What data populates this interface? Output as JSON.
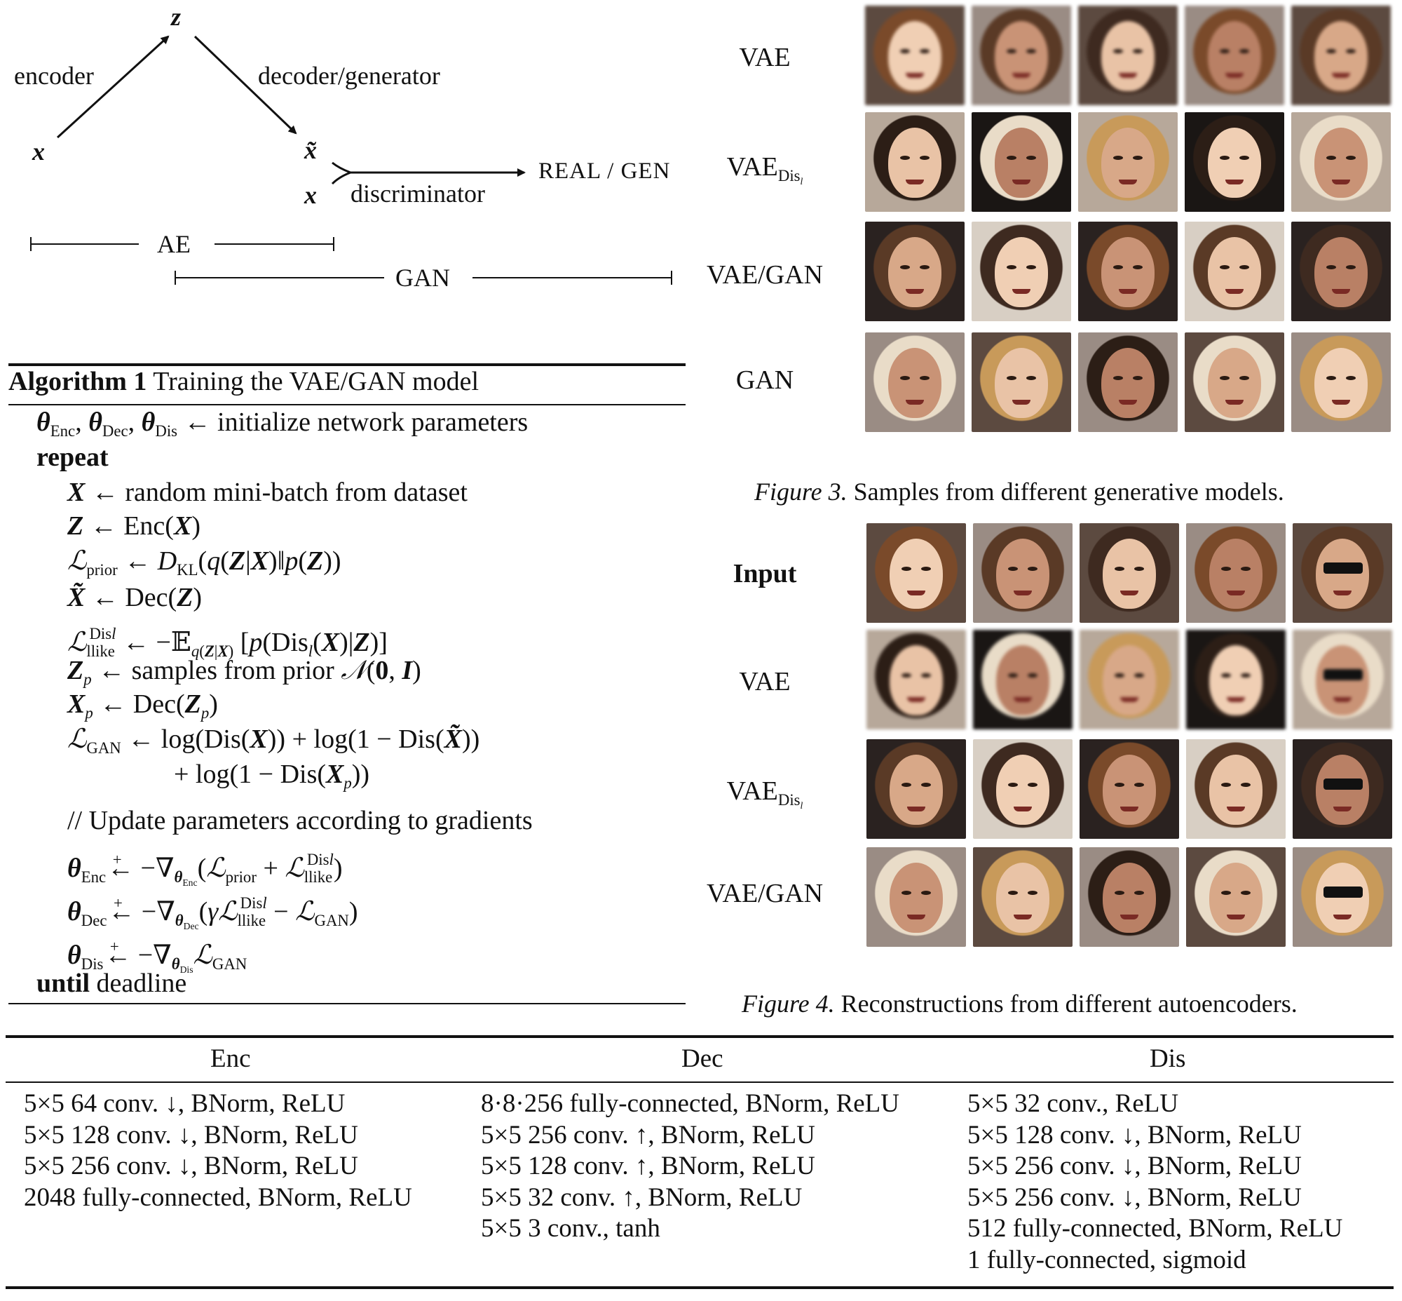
{
  "diagram": {
    "z": "z",
    "x_in": "x",
    "x_tilde": "x̃",
    "x_real": "x",
    "encoder": "encoder",
    "decoder": "decoder/generator",
    "discriminator": "discriminator",
    "output": "REAL / GEN",
    "ae": "AE",
    "gan": "GAN"
  },
  "algorithm": {
    "title_prefix": "Algorithm 1",
    "title": "Training the VAE/GAN model",
    "repeat": "repeat",
    "until": "until",
    "deadline": "deadline",
    "comment": "//  Update parameters according to gradients",
    "init_text": "initialize network parameters",
    "minibatch_text": "random mini-batch from dataset",
    "samples_text": "samples from prior"
  },
  "figure3": {
    "rows": [
      "VAE",
      "VAEDisl",
      "VAE/GAN",
      "GAN"
    ],
    "row_main": [
      "VAE",
      "VAE",
      "VAE/GAN",
      "GAN"
    ],
    "row_sub": [
      "",
      "Dis",
      "",
      ""
    ],
    "row_subsub": [
      "",
      "l",
      "",
      ""
    ],
    "caption_label": "Figure 3.",
    "caption_text": "Samples from different generative models."
  },
  "figure4": {
    "row_main": [
      "Input",
      "VAE",
      "VAE",
      "VAE/GAN"
    ],
    "row_sub": [
      "",
      "",
      "Dis",
      ""
    ],
    "row_subsub": [
      "",
      "",
      "l",
      ""
    ],
    "caption_label": "Figure 4.",
    "caption_text": "Reconstructions from different autoencoders."
  },
  "table": {
    "headers": [
      "Enc",
      "Dec",
      "Dis"
    ],
    "enc": [
      "5×5 64 conv. ↓, BNorm, ReLU",
      "5×5 128 conv. ↓, BNorm, ReLU",
      "5×5 256 conv. ↓, BNorm, ReLU",
      "2048 fully-connected, BNorm, ReLU"
    ],
    "dec": [
      "8·8·256 fully-connected, BNorm, ReLU",
      "5×5 256 conv. ↑, BNorm, ReLU",
      "5×5 128 conv. ↑, BNorm, ReLU",
      "5×5 32 conv. ↑, BNorm, ReLU",
      "5×5 3 conv., tanh"
    ],
    "dis": [
      "5×5 32 conv., ReLU",
      "5×5 128 conv. ↓, BNorm, ReLU",
      "5×5 256 conv. ↓, BNorm, ReLU",
      "5×5 256 conv. ↓, BNorm, ReLU",
      "512 fully-connected, BNorm, ReLU",
      "1 fully-connected, sigmoid"
    ]
  }
}
